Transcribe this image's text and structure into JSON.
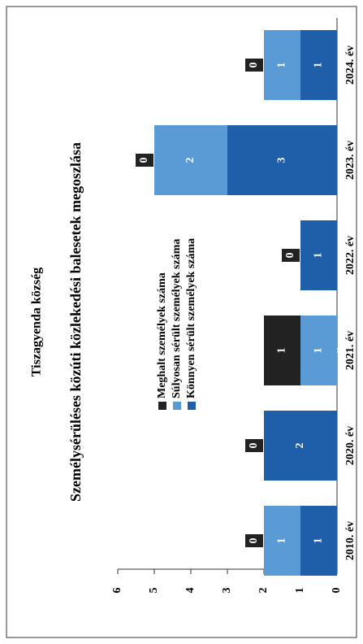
{
  "chart_data": {
    "type": "stacked_bar",
    "subtitle": "Tiszagyenda község",
    "title": "Személysérüléses közúti közlekedési balesetek megoszlása",
    "categories": [
      "2010. év",
      "2020. év",
      "2021. év",
      "2022. év",
      "2023. év",
      "2024. év"
    ],
    "series": [
      {
        "name": "Meghalt személyek száma",
        "color": "#222222",
        "values": [
          0,
          0,
          1,
          0,
          0,
          0
        ]
      },
      {
        "name": "Súlyosan sérült személyek száma",
        "color": "#5b9bd5",
        "values": [
          1,
          null,
          1,
          null,
          2,
          1
        ]
      },
      {
        "name": "Könnyen sérült személyek száma",
        "color": "#1f5ea8",
        "values": [
          1,
          2,
          0,
          1,
          3,
          1
        ]
      }
    ],
    "ylim": [
      0,
      6
    ],
    "yticks": [
      0,
      1,
      2,
      3,
      4,
      5,
      6
    ]
  }
}
